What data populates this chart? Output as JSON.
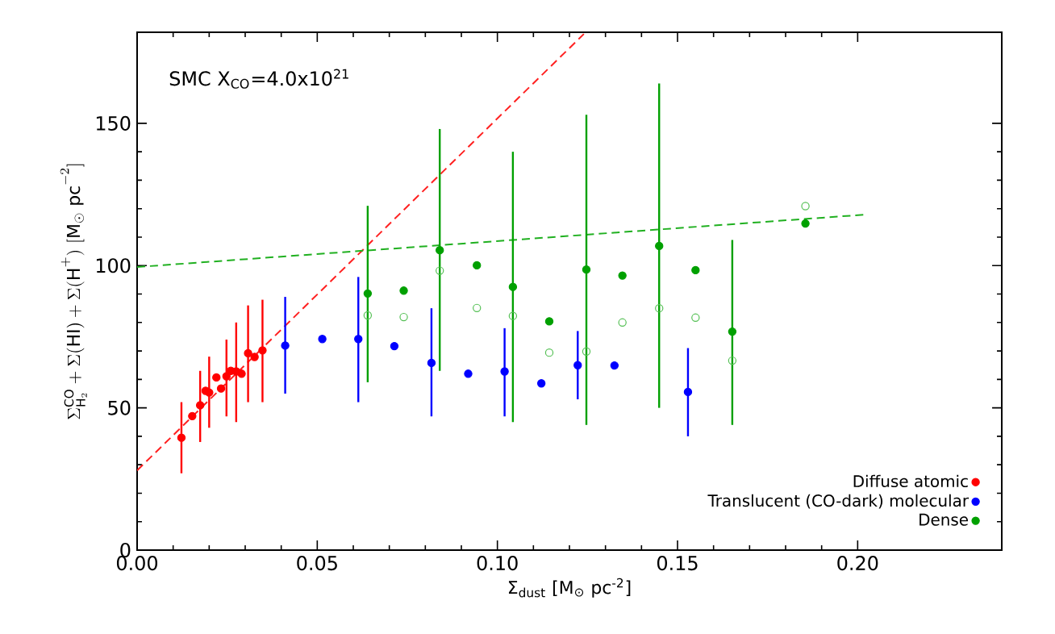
{
  "chart_data": {
    "type": "scatter",
    "xlabel": "Σ$_{dust}$ [M$_{⊙}$ pc$^{-2}$]",
    "ylabel": "\\Sigma^{\\mathrm{CO}}_{\\mathrm{H}_2} + \\Sigma(\\mathrm{HI}) + \\Sigma(\\mathrm{H}^{+})\\ [\\mathrm{M}_{\\odot}\\ \\mathrm{pc}^{-2}]",
    "annotations": [
      "SMC  X$_{CO}$=4.0x10$^{21}$"
    ],
    "xlim": [
      0,
      0.24
    ],
    "ylim": [
      0,
      182
    ],
    "xticks": [
      {
        "value": 0,
        "label": "0.00"
      },
      {
        "value": 0.05,
        "label": "0.05"
      },
      {
        "value": 0.1,
        "label": "0.10"
      },
      {
        "value": 0.15,
        "label": "0.15"
      },
      {
        "value": 0.2,
        "label": "0.20"
      }
    ],
    "yticks": [
      0,
      50,
      100,
      150
    ],
    "legend": "bottom right",
    "marker": "circle",
    "series": [
      {
        "type": "line",
        "marker": "none",
        "color": "#ff2020",
        "line_style": "dashed",
        "x": [
          0,
          0.124
        ],
        "values": [
          28,
          181.4
        ]
      },
      {
        "type": "line",
        "marker": "none",
        "color": "#20b020",
        "line_style": "dashed",
        "x": [
          0,
          0.202
        ],
        "values": [
          99.5,
          117.9
        ]
      },
      {
        "name": "Diffuse atomic",
        "color": "#ff0000",
        "x": [
          0.0123,
          0.0153,
          0.0175,
          0.019,
          0.02,
          0.022,
          0.0233,
          0.0248,
          0.026,
          0.0275,
          0.029,
          0.0308,
          0.0326,
          0.0348
        ],
        "values": [
          39.5,
          47.1,
          50.9,
          56.0,
          55.4,
          60.7,
          56.8,
          61.1,
          63.0,
          62.8,
          62.0,
          69.2,
          67.9,
          70.2
        ],
        "errors": [
          [
            27,
            52
          ],
          null,
          [
            38,
            63
          ],
          null,
          [
            43,
            68
          ],
          null,
          null,
          [
            47,
            74
          ],
          null,
          [
            45,
            80
          ],
          null,
          [
            52,
            86
          ],
          null,
          [
            52,
            88
          ]
        ]
      },
      {
        "name": "Translucent (CO-dark) molecular",
        "color": "#0000ff",
        "x": [
          0.0411,
          0.0514,
          0.0614,
          0.0714,
          0.0817,
          0.0919,
          0.102,
          0.1122,
          0.1223,
          0.1325,
          0.1529
        ],
        "values": [
          71.9,
          74.2,
          74.2,
          71.7,
          65.8,
          62.0,
          62.8,
          58.6,
          65.0,
          64.9,
          55.6
        ],
        "errors": [
          [
            55,
            89
          ],
          null,
          [
            52,
            96
          ],
          null,
          [
            47,
            85
          ],
          null,
          [
            47,
            78
          ],
          null,
          [
            53,
            77
          ],
          null,
          [
            40,
            71
          ]
        ]
      },
      {
        "name": "Dense",
        "color": "#00a000",
        "x": [
          0.064,
          0.074,
          0.084,
          0.0943,
          0.1043,
          0.1144,
          0.1247,
          0.1347,
          0.1449,
          0.155,
          0.1652,
          0.1855
        ],
        "values": [
          90.2,
          91.2,
          105.4,
          100.1,
          92.5,
          80.4,
          98.6,
          96.5,
          106.9,
          98.4,
          76.8,
          114.8
        ],
        "errors": [
          [
            59,
            121
          ],
          null,
          [
            63,
            148
          ],
          null,
          [
            45,
            140
          ],
          null,
          [
            44,
            153
          ],
          null,
          [
            50,
            164
          ],
          null,
          [
            44,
            109
          ],
          null
        ]
      },
      {
        "color": "#55c055",
        "x": [
          0.064,
          0.074,
          0.084,
          0.0943,
          0.1043,
          0.1144,
          0.1247,
          0.1347,
          0.1449,
          0.155,
          0.1652,
          0.1855
        ],
        "values": [
          82.5,
          81.9,
          98.2,
          85.1,
          82.3,
          69.4,
          69.8,
          80.0,
          85.0,
          81.7,
          66.6,
          120.9
        ]
      }
    ]
  }
}
